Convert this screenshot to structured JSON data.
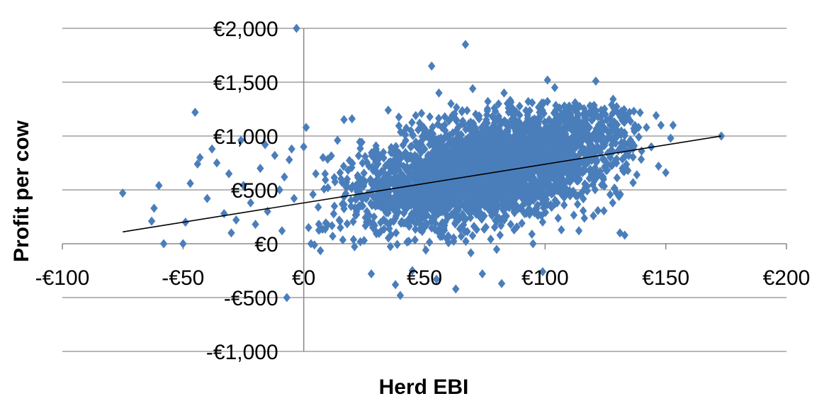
{
  "chart_data": {
    "type": "scatter",
    "title": "",
    "xlabel": "Herd EBI",
    "ylabel": "Profit per cow",
    "xlim": [
      -100,
      200
    ],
    "ylim": [
      -1000,
      2000
    ],
    "x_ticks": [
      -100,
      -50,
      0,
      50,
      100,
      150,
      200
    ],
    "x_tick_labels": [
      "-€100",
      "-€50",
      "€0",
      "€50",
      "€100",
      "€150",
      "€200"
    ],
    "y_ticks": [
      -1000,
      -500,
      0,
      500,
      1000,
      1500,
      2000
    ],
    "y_tick_labels": [
      "-€1,000",
      "-€500",
      "€0",
      "€500",
      "€1,000",
      "€1,500",
      "€2,000"
    ],
    "grid": "horizontal",
    "legend": "none",
    "marker": "diamond",
    "marker_color": "#4a7ebb",
    "trendline_color": "#000000",
    "trendline": {
      "x": [
        -75,
        173
      ],
      "y": [
        110,
        1000
      ]
    },
    "series": [
      {
        "points": [
          [
            -75,
            470
          ],
          [
            -63,
            210
          ],
          [
            -62,
            330
          ],
          [
            -60,
            540
          ],
          [
            -58,
            0
          ],
          [
            -50,
            0
          ],
          [
            -49,
            200
          ],
          [
            -47,
            560
          ],
          [
            -45,
            1220
          ],
          [
            -44,
            740
          ],
          [
            -43,
            800
          ],
          [
            -40,
            420
          ],
          [
            -38,
            880
          ],
          [
            -36,
            750
          ],
          [
            -33,
            280
          ],
          [
            -31,
            650
          ],
          [
            -30,
            100
          ],
          [
            -28,
            220
          ],
          [
            -26,
            960
          ],
          [
            -25,
            540
          ],
          [
            -22,
            380
          ],
          [
            -20,
            180
          ],
          [
            -18,
            700
          ],
          [
            -16,
            920
          ],
          [
            -15,
            300
          ],
          [
            -12,
            820
          ],
          [
            -10,
            500
          ],
          [
            -9,
            120
          ],
          [
            -8,
            620
          ],
          [
            -7,
            -500
          ],
          [
            -6,
            780
          ],
          [
            -5,
            880
          ],
          [
            -4,
            420
          ],
          [
            -3,
            2000
          ],
          [
            0,
            900
          ],
          [
            1,
            1080
          ],
          [
            2,
            150
          ],
          [
            3,
            0
          ],
          [
            5,
            650
          ],
          [
            6,
            340
          ],
          [
            8,
            800
          ],
          [
            10,
            520
          ],
          [
            12,
            70
          ],
          [
            14,
            960
          ],
          [
            15,
            210
          ],
          [
            18,
            600
          ],
          [
            20,
            1160
          ],
          [
            22,
            420
          ],
          [
            25,
            30
          ],
          [
            27,
            720
          ],
          [
            28,
            -280
          ],
          [
            30,
            880
          ],
          [
            33,
            540
          ],
          [
            35,
            1240
          ],
          [
            36,
            200
          ],
          [
            38,
            -380
          ],
          [
            40,
            -480
          ],
          [
            40,
            600
          ],
          [
            42,
            1010
          ],
          [
            44,
            360
          ],
          [
            45,
            -250
          ],
          [
            46,
            820
          ],
          [
            48,
            1120
          ],
          [
            50,
            150
          ],
          [
            52,
            640
          ],
          [
            53,
            1650
          ],
          [
            54,
            970
          ],
          [
            55,
            -330
          ],
          [
            56,
            1400
          ],
          [
            58,
            500
          ],
          [
            59,
            880
          ],
          [
            60,
            250
          ],
          [
            61,
            1300
          ],
          [
            62,
            740
          ],
          [
            63,
            -420
          ],
          [
            64,
            1080
          ],
          [
            65,
            420
          ],
          [
            66,
            950
          ],
          [
            67,
            1850
          ],
          [
            68,
            600
          ],
          [
            70,
            1440
          ],
          [
            71,
            820
          ],
          [
            72,
            320
          ],
          [
            73,
            1020
          ],
          [
            74,
            -280
          ],
          [
            75,
            680
          ],
          [
            76,
            1120
          ],
          [
            77,
            480
          ],
          [
            78,
            900
          ],
          [
            79,
            1260
          ],
          [
            80,
            560
          ],
          [
            81,
            820
          ],
          [
            82,
            -370
          ],
          [
            83,
            1400
          ],
          [
            84,
            700
          ],
          [
            85,
            1000
          ],
          [
            86,
            380
          ],
          [
            87,
            1200
          ],
          [
            88,
            860
          ],
          [
            89,
            620
          ],
          [
            90,
            1080
          ],
          [
            91,
            300
          ],
          [
            92,
            960
          ],
          [
            93,
            1320
          ],
          [
            94,
            740
          ],
          [
            95,
            0
          ],
          [
            96,
            880
          ],
          [
            97,
            1160
          ],
          [
            98,
            520
          ],
          [
            99,
            -260
          ],
          [
            100,
            1000
          ],
          [
            101,
            1520
          ],
          [
            102,
            760
          ],
          [
            104,
            1450
          ],
          [
            105,
            380
          ],
          [
            106,
            920
          ],
          [
            108,
            1280
          ],
          [
            110,
            620
          ],
          [
            112,
            980
          ],
          [
            114,
            120
          ],
          [
            115,
            1120
          ],
          [
            117,
            740
          ],
          [
            118,
            880
          ],
          [
            120,
            260
          ],
          [
            121,
            1510
          ],
          [
            122,
            980
          ],
          [
            124,
            620
          ],
          [
            125,
            1200
          ],
          [
            127,
            800
          ],
          [
            128,
            380
          ],
          [
            130,
            1050
          ],
          [
            131,
            100
          ],
          [
            132,
            700
          ],
          [
            133,
            80
          ],
          [
            135,
            1220
          ],
          [
            136,
            940
          ],
          [
            138,
            640
          ],
          [
            140,
            860
          ],
          [
            142,
            1080
          ],
          [
            144,
            900
          ],
          [
            146,
            1190
          ],
          [
            147,
            720
          ],
          [
            148,
            1100
          ],
          [
            150,
            660
          ],
          [
            152,
            980
          ],
          [
            153,
            1100
          ],
          [
            173,
            1000
          ]
        ],
        "dense_cloud": {
          "x_center": 78,
          "y_center": 700,
          "x_spread": 26,
          "y_spread": 250,
          "count": 3400
        }
      }
    ]
  }
}
